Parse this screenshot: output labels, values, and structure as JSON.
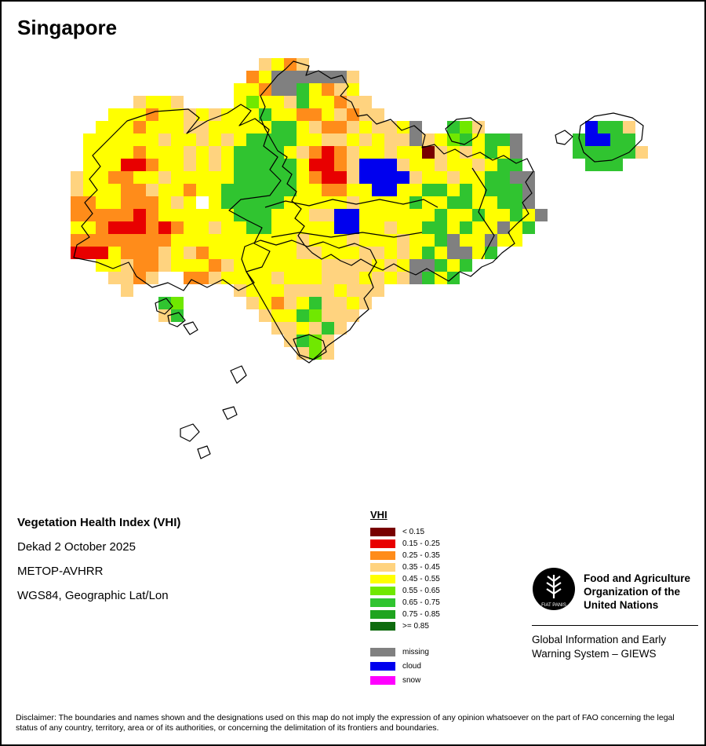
{
  "title": "Singapore",
  "info": {
    "product": "Vegetation Health Index (VHI)",
    "dekad": "Dekad 2 October 2025",
    "sensor": "METOP-AVHRR",
    "projection": "WGS84, Geographic Lat/Lon"
  },
  "legend": {
    "title": "VHI",
    "classes": [
      {
        "label": "< 0.15",
        "color": "#780000"
      },
      {
        "label": "0.15 - 0.25",
        "color": "#e80000"
      },
      {
        "label": "0.25 - 0.35",
        "color": "#ff8c1a"
      },
      {
        "label": "0.35 - 0.45",
        "color": "#ffd37f"
      },
      {
        "label": "0.45 - 0.55",
        "color": "#ffff00"
      },
      {
        "label": "0.55 - 0.65",
        "color": "#70e800"
      },
      {
        "label": "0.65 - 0.75",
        "color": "#30c430"
      },
      {
        "label": "0.75 - 0.85",
        "color": "#1fa41f"
      },
      {
        "label": ">= 0.85",
        "color": "#0e6b0e"
      }
    ],
    "special": [
      {
        "label": "missing",
        "color": "#808080"
      },
      {
        "label": "cloud",
        "color": "#0000ee"
      },
      {
        "label": "snow",
        "color": "#ff00ff"
      }
    ]
  },
  "footer": {
    "org_line1": "Food and Agriculture",
    "org_line2": "Organization of the",
    "org_line3": "United Nations",
    "giews_line1": "Global Information and Early",
    "giews_line2": "Warning System – GIEWS",
    "logo_motto": "FIAT PANIS"
  },
  "disclaimer": "Disclaimer: The boundaries and names shown and the designations used on this map do not imply the expression of any opinion whatsoever on the part of FAO concerning the legal status of any country, territory, area or of its authorities, or concerning the delimitation of its frontiers and boundaries.",
  "chart_data": {
    "type": "heatmap",
    "title": "Vegetation Health Index (VHI) raster — Singapore, Dekad 2 October 2025",
    "cell_size": 16,
    "origin": [
      88,
      72
    ],
    "palette": {
      "a": "#780000",
      "b": "#e80000",
      "c": "#ff8c1a",
      "d": "#ffd37f",
      "e": "#ffff00",
      "f": "#70e800",
      "g": "#30c430",
      "h": "#1fa41f",
      "i": "#0e6b0e",
      "m": "#808080",
      "u": "#0000ee",
      "s": "#ff00ff"
    },
    "legend_scale": [
      "< 0.15",
      "0.15 - 0.25",
      "0.25 - 0.35",
      "0.35 - 0.45",
      "0.45 - 0.55",
      "0.55 - 0.65",
      "0.65 - 0.75",
      "0.75 - 0.85",
      ">= 0.85",
      "missing",
      "cloud",
      "snow"
    ],
    "rows": [
      "...............decd...........................",
      "..............cemmmmmmd.......................",
      ".............eecmmgecde.......................",
      ".....deed....efeedgeecdd......................",
      "...eeeceededeeegeeccedcdd.....................",
      "..eeeceeeddeeeeeggedccdeddem..gfd........uggd.",
      ".eeeeeedeededeggggeeddededdmdefgeggm....guugg.",
      ".eeeeceeededeggggedcbcdeedeeadedegem....gggggd",
      ".eeebbceededegggggebbcduuudeedeedegg.....ggg..",
      "deecceedeeeeegggggecbbduuuudeedeeggmm.........",
      "deeeccdeeceeggggggeecceeuueeggegegggm.........",
      "cceecccede.egggggeeeeedeeeegeeggeeggm.........",
      "cccccbceeeeeegggeeedduueeeeeegeegeegem........",
      "eecbbbcbceedeeggeeeeeuueedeeggegeemeg.........",
      "cccccccceeeeeeeeeedeeedeeedeegmeemee..........",
      "bbbecccdedceeeeeeeddeeeddedegemmeg............",
      "..eedccdeeecdeeeeeeeddddedemmgeg..............",
      "...ddcd..ccdeeeedeeedddededmgeg...............",
      "....d........deeeddddeddd.....................",
      ".......gf.....decdegdded......................",
      ".......dg......deegfddd.......................",
      "................ddedgd........................",
      ".................dgfd.........................",
      "..................dfd.........................",
      ".............................................."
    ]
  }
}
